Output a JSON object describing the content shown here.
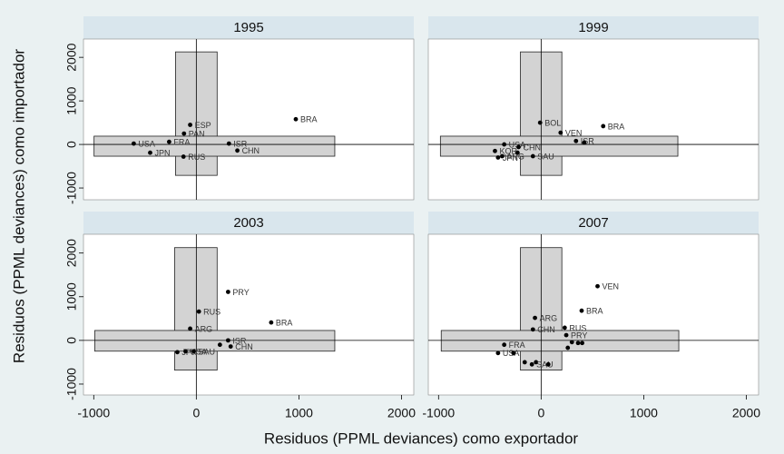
{
  "xlabel": "Residuos (PPML deviances) como exportador",
  "ylabel": "Residuos (PPML deviances) como importador",
  "chart_data": [
    {
      "type": "scatter",
      "title": "1995",
      "xlim": [
        -1100,
        2120
      ],
      "ylim": [
        -1270,
        2420
      ],
      "yticks": [
        -1000,
        0,
        1000,
        2000
      ],
      "color": "#000000",
      "box_color": "#d3d3d3",
      "x": [
        970,
        -610,
        -265,
        -450,
        -60,
        -120,
        318,
        400,
        -125
      ],
      "values": [
        580,
        20,
        60,
        -190,
        450,
        250,
        20,
        -140,
        -280
      ],
      "labels": [
        "BRA",
        "USA",
        "FRA",
        "JPN",
        "ESP",
        "PAN",
        "ISR",
        "CHN",
        "RUS"
      ],
      "boxes": [
        {
          "x0": -203,
          "x1": 203,
          "y0": -710,
          "y1": 2125
        },
        {
          "x0": -997,
          "x1": 1350,
          "y0": -270,
          "y1": 190
        }
      ]
    },
    {
      "type": "scatter",
      "title": "1999",
      "xlim": [
        -1100,
        2120
      ],
      "ylim": [
        -1270,
        2420
      ],
      "color": "#000000",
      "box_color": "#d3d3d3",
      "x": [
        605,
        190,
        -10,
        -360,
        -450,
        -380,
        -420,
        -220,
        -230,
        -80,
        340,
        420
      ],
      "values": [
        420,
        270,
        500,
        0,
        -150,
        -270,
        -300,
        -60,
        -190,
        -270,
        80,
        40
      ],
      "labels": [
        "BRA",
        "VEN",
        "BOL",
        "USA",
        "KOR",
        "ARG",
        "JPN",
        "CHN",
        null,
        "SAU",
        "ISR",
        null
      ],
      "boxes": [
        {
          "x0": -202,
          "x1": 202,
          "y0": -710,
          "y1": 2125
        },
        {
          "x0": -982,
          "x1": 1333,
          "y0": -270,
          "y1": 190
        }
      ]
    },
    {
      "type": "scatter",
      "title": "2003",
      "xlim": [
        -1100,
        2120
      ],
      "ylim": [
        -1250,
        2430
      ],
      "xticks": [
        -1000,
        0,
        1000,
        2000
      ],
      "yticks": [
        -1000,
        0,
        1000,
        2000
      ],
      "color": "#000000",
      "box_color": "#d3d3d3",
      "x": [
        310,
        25,
        -60,
        730,
        -185,
        -105,
        -25,
        310,
        335,
        230
      ],
      "values": [
        1110,
        660,
        270,
        410,
        -270,
        -250,
        -250,
        0,
        -140,
        -100
      ],
      "labels": [
        "PRY",
        "RUS",
        "ARG",
        "BRA",
        "JPN",
        "USA",
        "SAU",
        "ISR",
        "CHN",
        null
      ],
      "boxes": [
        {
          "x0": -212,
          "x1": 203,
          "y0": -680,
          "y1": 2124
        },
        {
          "x0": -990,
          "x1": 1350,
          "y0": -247,
          "y1": 227
        }
      ]
    },
    {
      "type": "scatter",
      "title": "2007",
      "xlim": [
        -1100,
        2120
      ],
      "ylim": [
        -1250,
        2430
      ],
      "xticks": [
        -1000,
        0,
        1000,
        2000
      ],
      "color": "#000000",
      "box_color": "#d3d3d3",
      "x": [
        550,
        395,
        -60,
        -80,
        230,
        245,
        300,
        360,
        400,
        260,
        -360,
        -420,
        -270,
        -160,
        -50,
        -90,
        70
      ],
      "values": [
        1240,
        680,
        515,
        250,
        290,
        120,
        -40,
        -60,
        -60,
        -170,
        -100,
        -290,
        -290,
        -500,
        -500,
        -550,
        -550
      ],
      "labels": [
        "VEN",
        "BRA",
        "ARG",
        "CHN",
        "RUS",
        "PRY",
        null,
        null,
        null,
        null,
        "FRA",
        "USA",
        null,
        null,
        null,
        "SAU",
        null
      ],
      "boxes": [
        {
          "x0": -202,
          "x1": 202,
          "y0": -680,
          "y1": 2124
        },
        {
          "x0": -974,
          "x1": 1342,
          "y0": -247,
          "y1": 227
        }
      ]
    }
  ]
}
